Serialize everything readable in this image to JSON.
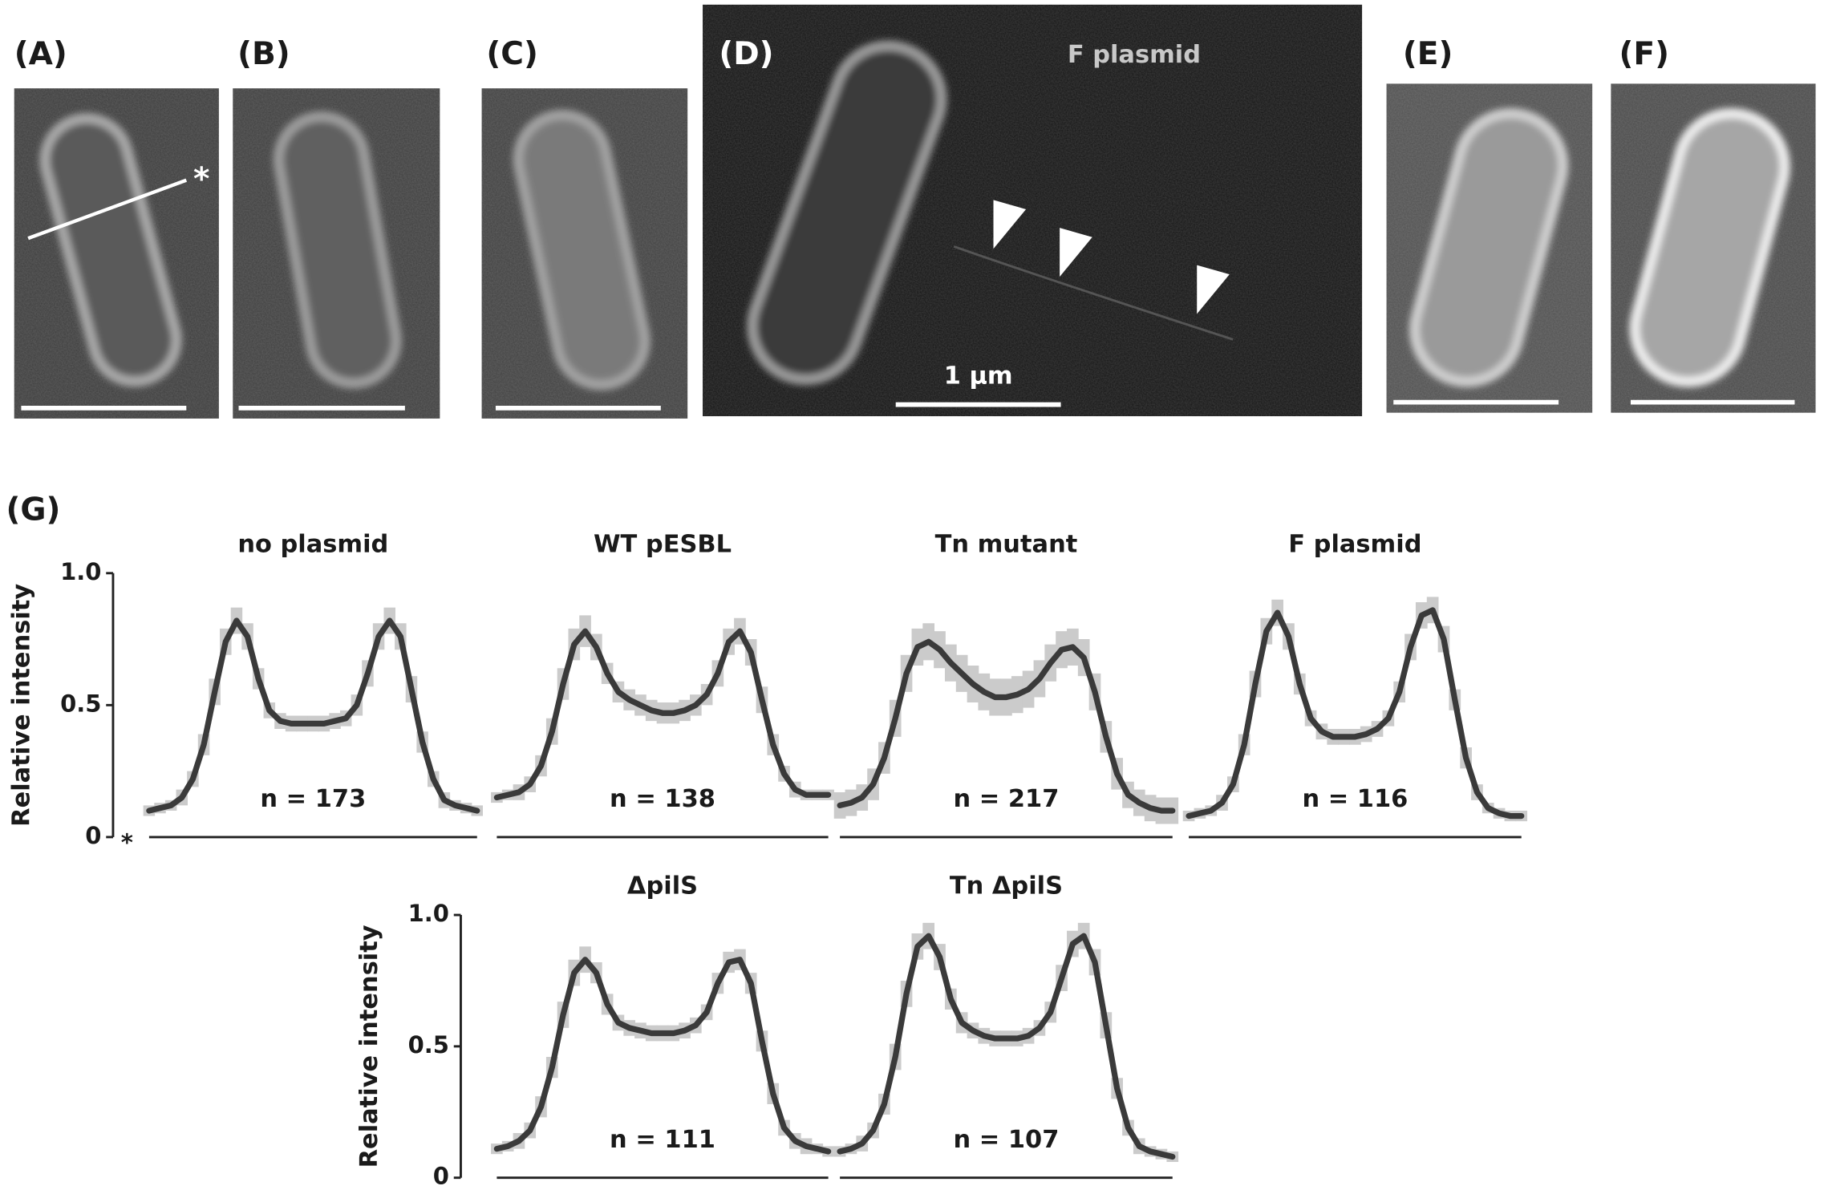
{
  "panels": [
    {
      "label": "(A)",
      "marker": "*"
    },
    {
      "label": "(B)"
    },
    {
      "label": "(C)"
    },
    {
      "label": "(D)",
      "title": "F plasmid",
      "scale_label": "1 µm"
    },
    {
      "label": "(E)"
    },
    {
      "label": "(F)"
    }
  ],
  "g_label": "(G)",
  "chart_data": [
    {
      "type": "line",
      "title": "no plasmid",
      "annotation": "n = 173",
      "y_label": "Relative intensity",
      "start_marker": "*",
      "ylim": [
        0,
        1
      ],
      "yticks": [
        0,
        0.5,
        {
          "value": 1,
          "label": "1.0"
        }
      ],
      "series": [
        {
          "color": "#3a3a3a",
          "band_color": "#cbcbcb",
          "values": [
            0.1,
            0.11,
            0.12,
            0.15,
            0.22,
            0.35,
            0.55,
            0.74,
            0.82,
            0.76,
            0.6,
            0.48,
            0.44,
            0.43,
            0.43,
            0.43,
            0.43,
            0.44,
            0.45,
            0.5,
            0.62,
            0.76,
            0.82,
            0.76,
            0.56,
            0.36,
            0.22,
            0.14,
            0.12,
            0.11,
            0.1
          ],
          "errors": [
            0.02,
            0.02,
            0.02,
            0.03,
            0.03,
            0.04,
            0.05,
            0.05,
            0.05,
            0.05,
            0.04,
            0.03,
            0.03,
            0.03,
            0.03,
            0.03,
            0.03,
            0.03,
            0.03,
            0.04,
            0.05,
            0.05,
            0.05,
            0.05,
            0.05,
            0.04,
            0.03,
            0.03,
            0.02,
            0.02,
            0.02
          ]
        }
      ]
    },
    {
      "type": "line",
      "title": "WT pESBL",
      "annotation": "n = 138",
      "ylim": [
        0,
        1
      ],
      "series": [
        {
          "color": "#3a3a3a",
          "band_color": "#cbcbcb",
          "values": [
            0.15,
            0.16,
            0.17,
            0.2,
            0.27,
            0.4,
            0.58,
            0.73,
            0.78,
            0.72,
            0.62,
            0.55,
            0.52,
            0.5,
            0.48,
            0.47,
            0.47,
            0.48,
            0.5,
            0.54,
            0.62,
            0.74,
            0.78,
            0.7,
            0.52,
            0.35,
            0.24,
            0.18,
            0.16,
            0.16,
            0.16
          ],
          "errors": [
            0.02,
            0.02,
            0.03,
            0.03,
            0.04,
            0.05,
            0.06,
            0.06,
            0.06,
            0.05,
            0.04,
            0.04,
            0.04,
            0.04,
            0.04,
            0.04,
            0.04,
            0.04,
            0.04,
            0.04,
            0.05,
            0.05,
            0.05,
            0.05,
            0.05,
            0.04,
            0.03,
            0.03,
            0.02,
            0.02,
            0.02
          ]
        }
      ]
    },
    {
      "type": "line",
      "title": "Tn mutant",
      "annotation": "n = 217",
      "ylim": [
        0,
        1
      ],
      "series": [
        {
          "color": "#3a3a3a",
          "band_color": "#cbcbcb",
          "values": [
            0.12,
            0.13,
            0.15,
            0.2,
            0.3,
            0.45,
            0.62,
            0.72,
            0.74,
            0.71,
            0.66,
            0.62,
            0.58,
            0.55,
            0.53,
            0.53,
            0.54,
            0.56,
            0.6,
            0.66,
            0.71,
            0.72,
            0.68,
            0.55,
            0.38,
            0.24,
            0.16,
            0.13,
            0.11,
            0.1,
            0.1
          ],
          "errors": [
            0.05,
            0.05,
            0.05,
            0.06,
            0.06,
            0.07,
            0.07,
            0.07,
            0.07,
            0.07,
            0.07,
            0.07,
            0.07,
            0.07,
            0.07,
            0.07,
            0.07,
            0.07,
            0.07,
            0.07,
            0.07,
            0.07,
            0.07,
            0.07,
            0.06,
            0.06,
            0.05,
            0.05,
            0.05,
            0.05,
            0.05
          ]
        }
      ]
    },
    {
      "type": "line",
      "title": "F plasmid",
      "annotation": "n = 116",
      "ylim": [
        0,
        1
      ],
      "series": [
        {
          "color": "#3a3a3a",
          "band_color": "#cbcbcb",
          "values": [
            0.08,
            0.09,
            0.1,
            0.13,
            0.2,
            0.35,
            0.58,
            0.78,
            0.85,
            0.76,
            0.58,
            0.45,
            0.4,
            0.38,
            0.38,
            0.38,
            0.39,
            0.41,
            0.45,
            0.55,
            0.72,
            0.84,
            0.86,
            0.75,
            0.52,
            0.3,
            0.17,
            0.11,
            0.09,
            0.08,
            0.08
          ],
          "errors": [
            0.02,
            0.02,
            0.02,
            0.03,
            0.03,
            0.04,
            0.05,
            0.05,
            0.05,
            0.05,
            0.04,
            0.03,
            0.03,
            0.03,
            0.03,
            0.03,
            0.03,
            0.03,
            0.03,
            0.04,
            0.05,
            0.05,
            0.05,
            0.05,
            0.04,
            0.04,
            0.03,
            0.02,
            0.02,
            0.02,
            0.02
          ]
        }
      ]
    },
    {
      "type": "line",
      "title": "ΔpilS",
      "annotation": "n = 111",
      "y_label": "Relative intensity",
      "ylim": [
        0,
        1
      ],
      "yticks": [
        0,
        0.5,
        {
          "value": 1,
          "label": "1.0"
        }
      ],
      "series": [
        {
          "color": "#3a3a3a",
          "band_color": "#cbcbcb",
          "values": [
            0.11,
            0.12,
            0.14,
            0.18,
            0.27,
            0.42,
            0.62,
            0.78,
            0.83,
            0.78,
            0.66,
            0.59,
            0.57,
            0.56,
            0.55,
            0.55,
            0.55,
            0.56,
            0.58,
            0.63,
            0.74,
            0.82,
            0.83,
            0.74,
            0.52,
            0.32,
            0.19,
            0.14,
            0.12,
            0.11,
            0.1
          ],
          "errors": [
            0.02,
            0.02,
            0.03,
            0.03,
            0.04,
            0.04,
            0.05,
            0.05,
            0.05,
            0.04,
            0.04,
            0.03,
            0.03,
            0.03,
            0.03,
            0.03,
            0.03,
            0.03,
            0.03,
            0.03,
            0.04,
            0.04,
            0.04,
            0.04,
            0.04,
            0.04,
            0.03,
            0.03,
            0.03,
            0.02,
            0.02
          ]
        }
      ]
    },
    {
      "type": "line",
      "title": "Tn ΔpilS",
      "annotation": "n = 107",
      "ylim": [
        0,
        1
      ],
      "series": [
        {
          "color": "#3a3a3a",
          "band_color": "#cbcbcb",
          "values": [
            0.1,
            0.11,
            0.13,
            0.18,
            0.28,
            0.46,
            0.7,
            0.88,
            0.92,
            0.84,
            0.68,
            0.59,
            0.56,
            0.54,
            0.53,
            0.53,
            0.53,
            0.54,
            0.57,
            0.63,
            0.76,
            0.89,
            0.92,
            0.82,
            0.58,
            0.34,
            0.19,
            0.12,
            0.1,
            0.09,
            0.08
          ],
          "errors": [
            0.02,
            0.02,
            0.03,
            0.03,
            0.04,
            0.05,
            0.05,
            0.05,
            0.05,
            0.05,
            0.04,
            0.04,
            0.03,
            0.03,
            0.03,
            0.03,
            0.03,
            0.03,
            0.03,
            0.04,
            0.05,
            0.05,
            0.05,
            0.05,
            0.05,
            0.04,
            0.03,
            0.03,
            0.02,
            0.02,
            0.02
          ]
        }
      ]
    }
  ]
}
